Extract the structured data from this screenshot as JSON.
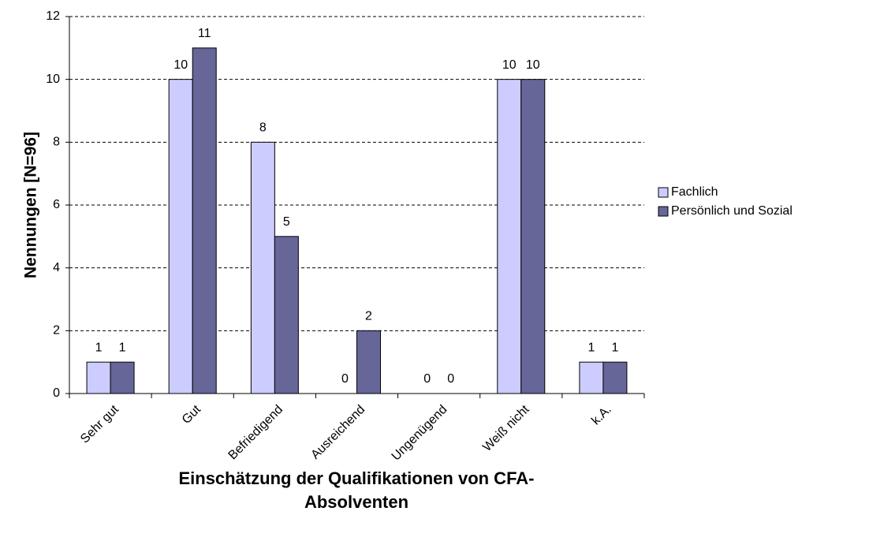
{
  "chart_data": {
    "type": "bar",
    "ylabel": "Nennungen [N=96]",
    "xlabel": "Einschätzung der Qualifikationen von CFA-Absolventen",
    "categories": [
      "Sehr gut",
      "Gut",
      "Befriedigend",
      "Ausreichend",
      "Ungenügend",
      "Weiß nicht",
      "k.A."
    ],
    "series": [
      {
        "name": "Fachlich",
        "color": "#ccccff",
        "values": [
          1,
          10,
          8,
          0,
          0,
          10,
          1
        ]
      },
      {
        "name": "Persönlich und Sozial",
        "color": "#666699",
        "values": [
          1,
          11,
          5,
          2,
          0,
          10,
          1
        ]
      }
    ],
    "ylim": [
      0,
      12
    ],
    "yticks": [
      0,
      2,
      4,
      6,
      8,
      10,
      12
    ],
    "grid": true,
    "legend": "right"
  }
}
